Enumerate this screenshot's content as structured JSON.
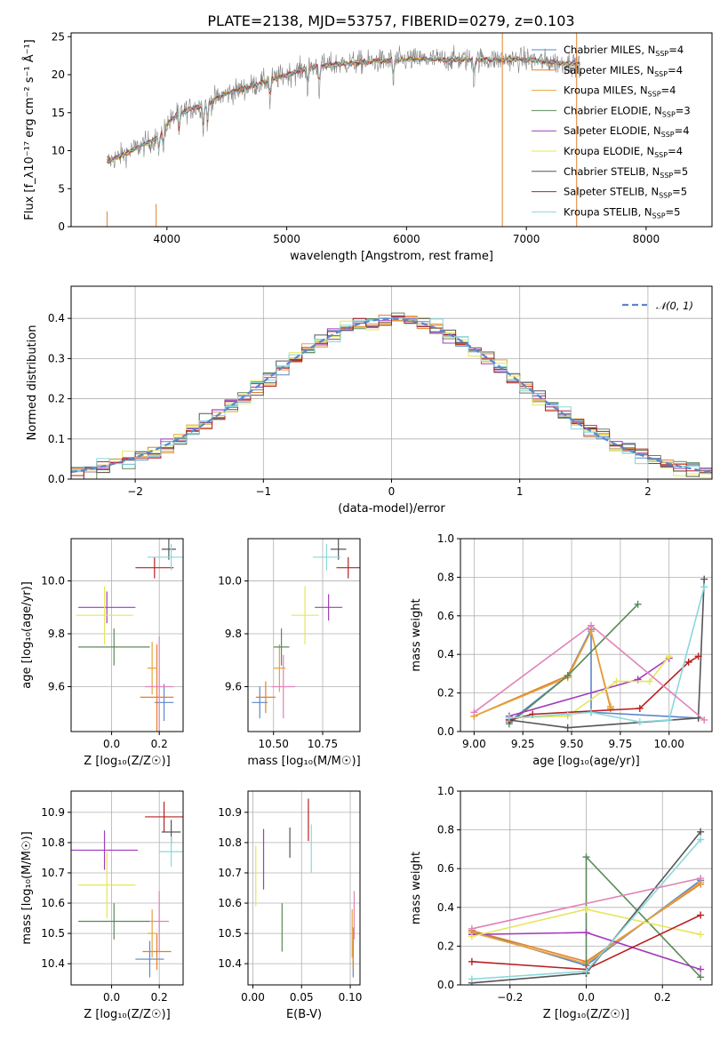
{
  "figure": {
    "title": "PLATE=2138, MJD=53757, FIBERID=0279, z=0.103"
  },
  "colors": {
    "Chabrier MILES": "#5b86cc",
    "Salpeter MILES": "#e3802a",
    "Kroupa MILES": "#e6a23a",
    "Chabrier ELODIE": "#5a8a5a",
    "Salpeter ELODIE": "#a23cba",
    "Kroupa ELODIE": "#e6e65a",
    "Chabrier STELIB": "#555555",
    "Salpeter STELIB": "#b82020",
    "Kroupa STELIB": "#88d8dc",
    "extra": "#e083b8",
    "data": "#808080",
    "normal": "#5b86cc"
  },
  "chart_data": [
    {
      "id": "spectrum",
      "type": "line",
      "title": "PLATE=2138, MJD=53757, FIBERID=0279, z=0.103",
      "xlabel": "wavelength [Angstrom, rest frame]",
      "ylabel": "Flux [f_λ10⁻¹⁷ erg cm⁻² s⁻¹ Å⁻¹]",
      "xlim": [
        3200,
        8550
      ],
      "ylim": [
        0,
        25.5
      ],
      "xticks": [
        4000,
        5000,
        6000,
        7000,
        8000
      ],
      "yticks": [
        0,
        5,
        10,
        15,
        20,
        25
      ],
      "grid": false,
      "legend_position": "top-right",
      "legend": [
        {
          "name": "Chabrier MILES",
          "nssp": "4"
        },
        {
          "name": "Salpeter MILES",
          "nssp": "4"
        },
        {
          "name": "Kroupa MILES",
          "nssp": "4"
        },
        {
          "name": "Chabrier ELODIE",
          "nssp": "3"
        },
        {
          "name": "Salpeter ELODIE",
          "nssp": "4"
        },
        {
          "name": "Kroupa ELODIE",
          "nssp": "4"
        },
        {
          "name": "Chabrier STELIB",
          "nssp": "5"
        },
        {
          "name": "Salpeter STELIB",
          "nssp": "5"
        },
        {
          "name": "Kroupa STELIB",
          "nssp": "5"
        }
      ],
      "continuum": {
        "x": [
          3500,
          3700,
          3900,
          4000,
          4100,
          4300,
          4500,
          4700,
          5000,
          5200,
          5500,
          6000,
          6500,
          7000,
          7300
        ],
        "y": [
          8.5,
          10.0,
          11.5,
          13.5,
          15.0,
          16.0,
          17.5,
          18.5,
          20.0,
          21.0,
          21.5,
          22.0,
          22.0,
          22.0,
          21.5
        ]
      }
    },
    {
      "id": "residuals",
      "type": "histogram",
      "xlabel": "(data-model)/error",
      "ylabel": "Normed distribution",
      "xlim": [
        -2.5,
        2.5
      ],
      "ylim": [
        0,
        0.48
      ],
      "xticks": [
        -2,
        -1,
        0,
        1,
        2
      ],
      "yticks": [
        0.0,
        0.1,
        0.2,
        0.3,
        0.4
      ],
      "grid": true,
      "legend_position": "top-right",
      "legend": [
        "𝒩(0, 1)"
      ]
    },
    {
      "id": "age-vs-Z",
      "type": "scatter",
      "xlabel": "Z [log₁₀(Z/Z☉)]",
      "ylabel": "age  [log₁₀(age/yr)]",
      "xlim": [
        -0.17,
        0.3
      ],
      "ylim": [
        9.43,
        10.16
      ],
      "xticks": [
        0.0,
        0.2
      ],
      "yticks": [
        9.6,
        9.8,
        10.0
      ],
      "grid": true,
      "points": [
        {
          "model": "Chabrier MILES",
          "x": 0.22,
          "y": 9.54,
          "xerr": 0.04,
          "yerr": 0.07
        },
        {
          "model": "Salpeter MILES",
          "x": 0.19,
          "y": 9.56,
          "xerr": 0.07,
          "yerr": 0.2
        },
        {
          "model": "Kroupa MILES",
          "x": 0.17,
          "y": 9.67,
          "xerr": 0.02,
          "yerr": 0.1
        },
        {
          "model": "Chabrier ELODIE",
          "x": 0.01,
          "y": 9.75,
          "xerr": 0.15,
          "yerr": 0.07
        },
        {
          "model": "Salpeter ELODIE",
          "x": -0.02,
          "y": 9.9,
          "xerr": 0.12,
          "yerr": 0.06
        },
        {
          "model": "Kroupa ELODIE",
          "x": -0.03,
          "y": 9.87,
          "xerr": 0.12,
          "yerr": 0.11
        },
        {
          "model": "Chabrier STELIB",
          "x": 0.24,
          "y": 10.12,
          "xerr": 0.03,
          "yerr": 0.04
        },
        {
          "model": "Salpeter STELIB",
          "x": 0.18,
          "y": 10.05,
          "xerr": 0.08,
          "yerr": 0.04
        },
        {
          "model": "Kroupa STELIB",
          "x": 0.25,
          "y": 10.09,
          "xerr": 0.1,
          "yerr": 0.05
        },
        {
          "model": "extra",
          "x": 0.2,
          "y": 9.6,
          "xerr": 0.06,
          "yerr": 0.19
        }
      ]
    },
    {
      "id": "age-vs-mass",
      "type": "scatter",
      "xlabel": "mass [log₁₀(M/M☉)]",
      "ylabel": "",
      "xlim": [
        10.37,
        10.94
      ],
      "ylim": [
        9.43,
        10.16
      ],
      "xticks": [
        10.5,
        10.75
      ],
      "yticks": [
        9.6,
        9.8,
        10.0
      ],
      "grid": true,
      "points": [
        {
          "model": "Chabrier MILES",
          "x": 10.43,
          "y": 9.54,
          "xerr": 0.04,
          "yerr": 0.06
        },
        {
          "model": "Salpeter MILES",
          "x": 10.46,
          "y": 9.56,
          "xerr": 0.05,
          "yerr": 0.06
        },
        {
          "model": "Kroupa MILES",
          "x": 10.53,
          "y": 9.67,
          "xerr": 0.03,
          "yerr": 0.09
        },
        {
          "model": "Chabrier ELODIE",
          "x": 10.54,
          "y": 9.75,
          "xerr": 0.04,
          "yerr": 0.07
        },
        {
          "model": "Salpeter ELODIE",
          "x": 10.78,
          "y": 9.9,
          "xerr": 0.07,
          "yerr": 0.05
        },
        {
          "model": "Kroupa ELODIE",
          "x": 10.66,
          "y": 9.87,
          "xerr": 0.07,
          "yerr": 0.11
        },
        {
          "model": "Chabrier STELIB",
          "x": 10.83,
          "y": 10.12,
          "xerr": 0.04,
          "yerr": 0.04
        },
        {
          "model": "Salpeter STELIB",
          "x": 10.88,
          "y": 10.05,
          "xerr": 0.06,
          "yerr": 0.04
        },
        {
          "model": "Kroupa STELIB",
          "x": 10.77,
          "y": 10.09,
          "xerr": 0.07,
          "yerr": 0.05
        },
        {
          "model": "extra",
          "x": 10.55,
          "y": 9.6,
          "xerr": 0.06,
          "yerr": 0.12
        }
      ]
    },
    {
      "id": "massweight-vs-age",
      "type": "line",
      "xlabel": "age  [log₁₀(age/yr)]",
      "ylabel": "mass weight",
      "xlim": [
        8.93,
        10.22
      ],
      "ylim": [
        0,
        1.0
      ],
      "xticks": [
        9.0,
        9.25,
        9.5,
        9.75,
        10.0
      ],
      "yticks": [
        0.0,
        0.2,
        0.4,
        0.6,
        0.8,
        1.0
      ],
      "grid": true,
      "series": [
        {
          "model": "Chabrier MILES",
          "x": [
            9.18,
            9.48,
            9.6,
            9.6,
            10.15
          ],
          "y": [
            0.05,
            0.29,
            0.53,
            0.1,
            0.07
          ]
        },
        {
          "model": "Salpeter MILES",
          "x": [
            9.0,
            9.48,
            9.6,
            9.7
          ],
          "y": [
            0.08,
            0.29,
            0.52,
            0.12
          ]
        },
        {
          "model": "Kroupa MILES",
          "x": [
            9.0,
            9.48,
            9.6,
            9.7
          ],
          "y": [
            0.08,
            0.28,
            0.52,
            0.13
          ]
        },
        {
          "model": "Chabrier ELODIE",
          "x": [
            9.18,
            9.48,
            9.84
          ],
          "y": [
            0.04,
            0.29,
            0.66
          ]
        },
        {
          "model": "Salpeter ELODIE",
          "x": [
            9.18,
            9.84,
            10.0
          ],
          "y": [
            0.08,
            0.27,
            0.38
          ]
        },
        {
          "model": "Kroupa ELODIE",
          "x": [
            9.18,
            9.48,
            9.73,
            9.9,
            10.0
          ],
          "y": [
            0.07,
            0.08,
            0.26,
            0.26,
            0.39
          ]
        },
        {
          "model": "Chabrier STELIB",
          "x": [
            9.18,
            9.48,
            10.15,
            10.18
          ],
          "y": [
            0.06,
            0.02,
            0.07,
            0.79
          ]
        },
        {
          "model": "Salpeter STELIB",
          "x": [
            9.18,
            9.3,
            9.85,
            10.1,
            10.15
          ],
          "y": [
            0.06,
            0.09,
            0.12,
            0.36,
            0.39
          ]
        },
        {
          "model": "Kroupa STELIB",
          "x": [
            9.18,
            9.48,
            9.6,
            9.85,
            10.0,
            10.18
          ],
          "y": [
            0.07,
            0.09,
            0.1,
            0.05,
            0.06,
            0.75
          ]
        },
        {
          "model": "extra",
          "x": [
            9.0,
            9.6,
            10.18
          ],
          "y": [
            0.1,
            0.55,
            0.06
          ]
        }
      ]
    },
    {
      "id": "mass-vs-Z",
      "type": "scatter",
      "xlabel": "Z [log₁₀(Z/Z☉)]",
      "ylabel": "mass [log₁₀(M/M☉)]",
      "xlim": [
        -0.17,
        0.3
      ],
      "ylim": [
        10.33,
        10.97
      ],
      "xticks": [
        0.0,
        0.2
      ],
      "yticks": [
        10.4,
        10.5,
        10.6,
        10.7,
        10.8,
        10.9
      ],
      "grid": true,
      "points": [
        {
          "model": "Chabrier MILES",
          "x": 0.16,
          "y": 10.415,
          "xerr": 0.06,
          "yerr": 0.06
        },
        {
          "model": "Salpeter MILES",
          "x": 0.19,
          "y": 10.44,
          "xerr": 0.06,
          "yerr": 0.06
        },
        {
          "model": "Kroupa MILES",
          "x": 0.17,
          "y": 10.5,
          "xerr": 0.02,
          "yerr": 0.08
        },
        {
          "model": "Chabrier ELODIE",
          "x": 0.01,
          "y": 10.54,
          "xerr": 0.15,
          "yerr": 0.06
        },
        {
          "model": "Salpeter ELODIE",
          "x": -0.03,
          "y": 10.775,
          "xerr": 0.14,
          "yerr": 0.065
        },
        {
          "model": "Kroupa ELODIE",
          "x": -0.02,
          "y": 10.66,
          "xerr": 0.12,
          "yerr": 0.11
        },
        {
          "model": "Chabrier STELIB",
          "x": 0.25,
          "y": 10.835,
          "xerr": 0.04,
          "yerr": 0.04
        },
        {
          "model": "Salpeter STELIB",
          "x": 0.22,
          "y": 10.885,
          "xerr": 0.08,
          "yerr": 0.05
        },
        {
          "model": "Kroupa STELIB",
          "x": 0.25,
          "y": 10.77,
          "xerr": 0.05,
          "yerr": 0.05
        },
        {
          "model": "extra",
          "x": 0.2,
          "y": 10.54,
          "xerr": 0.04,
          "yerr": 0.1
        }
      ]
    },
    {
      "id": "mass-vs-ebv",
      "type": "scatter",
      "xlabel": "E(B-V)",
      "ylabel": "",
      "xlim": [
        -0.005,
        0.11
      ],
      "ylim": [
        10.33,
        10.97
      ],
      "xticks": [
        0.0,
        0.05,
        0.1
      ],
      "yticks": [
        10.4,
        10.5,
        10.6,
        10.7,
        10.8,
        10.9
      ],
      "grid": true,
      "points": [
        {
          "model": "Chabrier MILES",
          "x": 0.103,
          "y": 10.415,
          "yerr": 0.06
        },
        {
          "model": "Salpeter MILES",
          "x": 0.103,
          "y": 10.45,
          "yerr": 0.07
        },
        {
          "model": "Kroupa MILES",
          "x": 0.102,
          "y": 10.5,
          "yerr": 0.08
        },
        {
          "model": "Chabrier ELODIE",
          "x": 0.03,
          "y": 10.52,
          "yerr": 0.08
        },
        {
          "model": "Salpeter ELODIE",
          "x": 0.011,
          "y": 10.745,
          "yerr": 0.1
        },
        {
          "model": "Kroupa ELODIE",
          "x": 0.003,
          "y": 10.69,
          "yerr": 0.1
        },
        {
          "model": "Chabrier STELIB",
          "x": 0.038,
          "y": 10.8,
          "yerr": 0.05
        },
        {
          "model": "Salpeter STELIB",
          "x": 0.057,
          "y": 10.875,
          "yerr": 0.07
        },
        {
          "model": "Kroupa STELIB",
          "x": 0.06,
          "y": 10.78,
          "yerr": 0.08
        },
        {
          "model": "extra",
          "x": 0.104,
          "y": 10.56,
          "yerr": 0.08
        }
      ]
    },
    {
      "id": "massweight-vs-Z",
      "type": "line",
      "xlabel": "Z [log₁₀(Z/Z☉)]",
      "ylabel": "mass weight",
      "xlim": [
        -0.33,
        0.33
      ],
      "ylim": [
        0,
        1.0
      ],
      "xticks": [
        -0.2,
        0.0,
        0.2
      ],
      "yticks": [
        0.0,
        0.2,
        0.4,
        0.6,
        0.8,
        1.0
      ],
      "grid": true,
      "series": [
        {
          "model": "Chabrier MILES",
          "x": [
            -0.3,
            0.0,
            0.3
          ],
          "y": [
            0.28,
            0.1,
            0.54
          ]
        },
        {
          "model": "Salpeter MILES",
          "x": [
            -0.3,
            0.0,
            0.3
          ],
          "y": [
            0.28,
            0.12,
            0.52
          ]
        },
        {
          "model": "Kroupa MILES",
          "x": [
            -0.3,
            0.0,
            0.3
          ],
          "y": [
            0.27,
            0.11,
            0.53
          ]
        },
        {
          "model": "Chabrier ELODIE",
          "x": [
            0.0,
            0.0,
            0.3
          ],
          "y": [
            0.06,
            0.66,
            0.04
          ]
        },
        {
          "model": "Salpeter ELODIE",
          "x": [
            -0.3,
            0.0,
            0.3
          ],
          "y": [
            0.26,
            0.27,
            0.08
          ]
        },
        {
          "model": "Kroupa ELODIE",
          "x": [
            -0.3,
            0.0,
            0.3
          ],
          "y": [
            0.25,
            0.39,
            0.26
          ]
        },
        {
          "model": "Chabrier STELIB",
          "x": [
            -0.3,
            0.0,
            0.3
          ],
          "y": [
            0.01,
            0.06,
            0.79
          ]
        },
        {
          "model": "Salpeter STELIB",
          "x": [
            -0.3,
            0.0,
            0.3
          ],
          "y": [
            0.12,
            0.08,
            0.36
          ]
        },
        {
          "model": "Kroupa STELIB",
          "x": [
            -0.3,
            0.0,
            0.3
          ],
          "y": [
            0.03,
            0.07,
            0.75
          ]
        },
        {
          "model": "extra",
          "x": [
            -0.3,
            0.3
          ],
          "y": [
            0.29,
            0.55
          ]
        }
      ]
    }
  ]
}
